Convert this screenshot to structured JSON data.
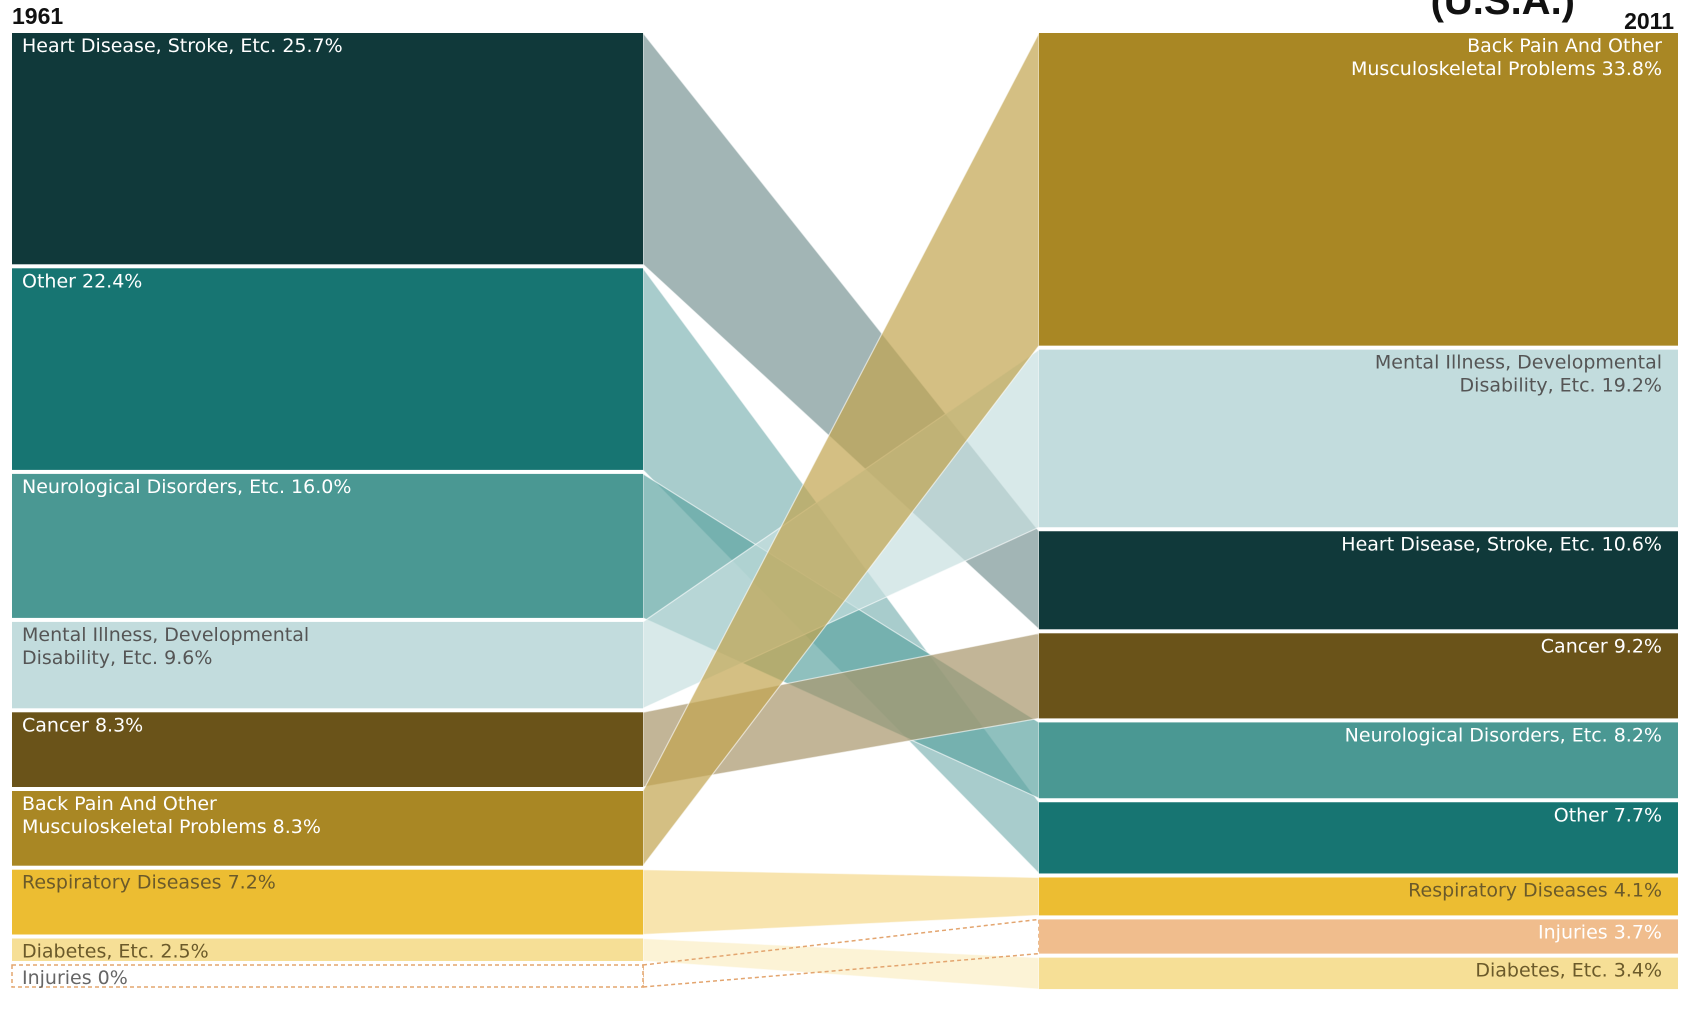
{
  "chart_data": {
    "type": "sankey",
    "title": "(U.S.A.)",
    "left_label": "1961",
    "right_label": "2011",
    "categories": [
      {
        "name": "Heart Disease, Stroke, Etc.",
        "label_1961": [
          "Heart Disease, Stroke, Etc. 25.7%"
        ],
        "label_2011": [
          "Heart Disease, Stroke, Etc. 10.6%"
        ],
        "v1961": 25.7,
        "v2011": 10.6,
        "color": "#10393a",
        "flow_color": "#7a9696",
        "text": "#ffffff"
      },
      {
        "name": "Other",
        "label_1961": [
          "Other 22.4%"
        ],
        "label_2011": [
          "Other 7.7%"
        ],
        "v1961": 22.4,
        "v2011": 7.7,
        "color": "#177572",
        "flow_color": "#83b6b6",
        "text": "#ffffff"
      },
      {
        "name": "Neurological Disorders, Etc.",
        "label_1961": [
          "Neurological Disorders, Etc. 16.0%"
        ],
        "label_2011": [
          "Neurological Disorders, Etc. 8.2%"
        ],
        "v1961": 16.0,
        "v2011": 8.2,
        "color": "#4a9893",
        "flow_color": "#5fa5a2",
        "text": "#ffffff"
      },
      {
        "name": "Mental Illness, Developmental Disability, Etc.",
        "label_1961": [
          "Mental Illness, Developmental",
          "Disability, Etc. 9.6%"
        ],
        "label_2011": [
          "Mental Illness, Developmental",
          "Disability, Etc. 19.2%"
        ],
        "v1961": 9.6,
        "v2011": 19.2,
        "color": "#c2dcdd",
        "flow_color": "#c7e0e0",
        "text": "#555555"
      },
      {
        "name": "Cancer",
        "label_1961": [
          "Cancer 8.3%"
        ],
        "label_2011": [
          "Cancer 9.2%"
        ],
        "v1961": 8.3,
        "v2011": 9.2,
        "color": "#6a5319",
        "flow_color": "#a8966b",
        "text": "#ffffff"
      },
      {
        "name": "Back Pain And Other Musculoskeletal Problems",
        "label_1961": [
          "Back Pain And Other",
          "Musculoskeletal Problems 8.3%"
        ],
        "label_2011": [
          "Back Pain And Other",
          "Musculoskeletal Problems 33.8%"
        ],
        "v1961": 8.3,
        "v2011": 33.8,
        "color": "#a98724",
        "flow_color": "#c2a44e",
        "text": "#ffffff"
      },
      {
        "name": "Respiratory Diseases",
        "label_1961": [
          "Respiratory Diseases 7.2%"
        ],
        "label_2011": [
          "Respiratory Diseases 4.1%"
        ],
        "v1961": 7.2,
        "v2011": 4.1,
        "color": "#ecbd32",
        "flow_color": "#f5d98c",
        "text": "#6b5a2a"
      },
      {
        "name": "Diabetes, Etc.",
        "label_1961": [
          "Diabetes, Etc. 2.5%"
        ],
        "label_2011": [
          "Diabetes, Etc. 3.4%"
        ],
        "v1961": 2.5,
        "v2011": 3.4,
        "color": "#f6df96",
        "flow_color": "#fbeec5",
        "text": "#6b5a2a"
      },
      {
        "name": "Injuries",
        "label_1961": [
          "Injuries 0%"
        ],
        "label_2011": [
          "Injuries 3.7%"
        ],
        "v1961": 0,
        "v2011": 3.7,
        "color": "#f0bd8d",
        "flow_color": "#f0bd8d",
        "text": "#ffffff"
      }
    ],
    "order_1961": [
      "Heart Disease, Stroke, Etc.",
      "Other",
      "Neurological Disorders, Etc.",
      "Mental Illness, Developmental Disability, Etc.",
      "Cancer",
      "Back Pain And Other Musculoskeletal Problems",
      "Respiratory Diseases",
      "Diabetes, Etc.",
      "Injuries"
    ],
    "order_2011": [
      "Back Pain And Other Musculoskeletal Problems",
      "Mental Illness, Developmental Disability, Etc.",
      "Heart Disease, Stroke, Etc.",
      "Cancer",
      "Neurological Disorders, Etc.",
      "Other",
      "Respiratory Diseases",
      "Injuries",
      "Diabetes, Etc."
    ],
    "accent_colors": {
      "injuries_outline": "#e3a56f"
    }
  }
}
